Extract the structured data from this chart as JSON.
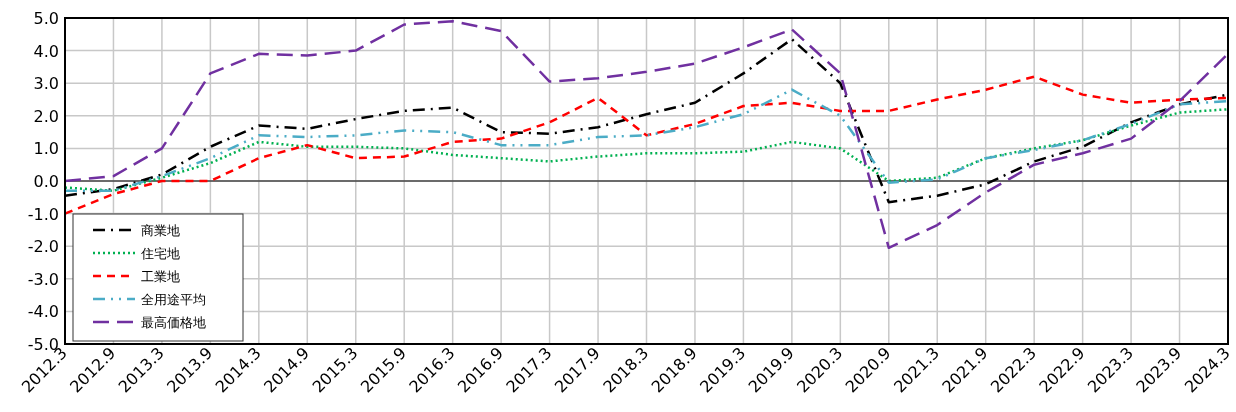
{
  "chart_data": {
    "type": "line",
    "categories": [
      "2012.3",
      "2012.9",
      "2013.3",
      "2013.9",
      "2014.3",
      "2014.9",
      "2015.3",
      "2015.9",
      "2016.3",
      "2016.9",
      "2017.3",
      "2017.9",
      "2018.3",
      "2018.9",
      "2019.3",
      "2019.9",
      "2020.3",
      "2020.9",
      "2021.3",
      "2021.9",
      "2022.3",
      "2022.9",
      "2023.3",
      "2023.9",
      "2024.3"
    ],
    "series": [
      {
        "name": "商業地",
        "color": "#000000",
        "line_style": "dashdot",
        "values": [
          -0.45,
          -0.25,
          0.2,
          1.05,
          1.7,
          1.6,
          1.9,
          2.15,
          2.25,
          1.5,
          1.45,
          1.65,
          2.05,
          2.4,
          3.3,
          4.35,
          3.0,
          -0.65,
          -0.45,
          -0.1,
          0.6,
          1.05,
          1.8,
          2.35,
          2.65
        ]
      },
      {
        "name": "住宅地",
        "color": "#00b050",
        "line_style": "dotted",
        "values": [
          -0.2,
          -0.3,
          0.1,
          0.55,
          1.2,
          1.05,
          1.05,
          1.0,
          0.8,
          0.7,
          0.6,
          0.75,
          0.85,
          0.85,
          0.9,
          1.2,
          1.0,
          0.0,
          0.1,
          0.7,
          1.0,
          1.25,
          1.7,
          2.1,
          2.2
        ]
      },
      {
        "name": "工業地",
        "color": "#ff0000",
        "line_style": "dashed",
        "values": [
          -1.0,
          -0.4,
          0.0,
          0.0,
          0.7,
          1.1,
          0.7,
          0.75,
          1.2,
          1.3,
          1.8,
          2.55,
          1.4,
          1.75,
          2.3,
          2.4,
          2.15,
          2.15,
          2.5,
          2.8,
          3.2,
          2.65,
          2.4,
          2.5,
          2.55
        ]
      },
      {
        "name": "全用途平均",
        "color": "#4bacc6",
        "line_style": "dashdotdot",
        "values": [
          -0.3,
          -0.3,
          0.15,
          0.7,
          1.4,
          1.35,
          1.4,
          1.55,
          1.5,
          1.1,
          1.1,
          1.35,
          1.4,
          1.65,
          2.05,
          2.8,
          2.0,
          -0.05,
          0.05,
          0.7,
          0.95,
          1.25,
          1.75,
          2.35,
          2.45
        ]
      },
      {
        "name": "最高価格地",
        "color": "#7030a0",
        "line_style": "longdash",
        "values": [
          0.0,
          0.15,
          1.0,
          3.3,
          3.9,
          3.85,
          4.0,
          4.8,
          4.9,
          4.6,
          3.05,
          3.15,
          3.35,
          3.6,
          4.1,
          4.65,
          3.3,
          -2.05,
          -1.35,
          -0.35,
          0.5,
          0.85,
          1.3,
          2.45,
          3.9
        ]
      }
    ],
    "ylim": [
      -5,
      5
    ],
    "yticks": [
      {
        "value": 5,
        "label": "5.0"
      },
      {
        "value": 4,
        "label": "4.0"
      },
      {
        "value": 3,
        "label": "3.0"
      },
      {
        "value": 2,
        "label": "2.0"
      },
      {
        "value": 1,
        "label": "1.0"
      },
      {
        "value": 0,
        "label": "0.0"
      },
      {
        "value": -1,
        "label": "-1.0"
      },
      {
        "value": -2,
        "label": "-2.0"
      },
      {
        "value": -3,
        "label": "-3.0"
      },
      {
        "value": -4,
        "label": "-4.0"
      },
      {
        "value": -5,
        "label": "-5.0"
      }
    ],
    "ref_lines": [
      {
        "axis": "y",
        "value": 0,
        "color": "#000000"
      }
    ],
    "grid": true,
    "legend": "bottom left"
  }
}
